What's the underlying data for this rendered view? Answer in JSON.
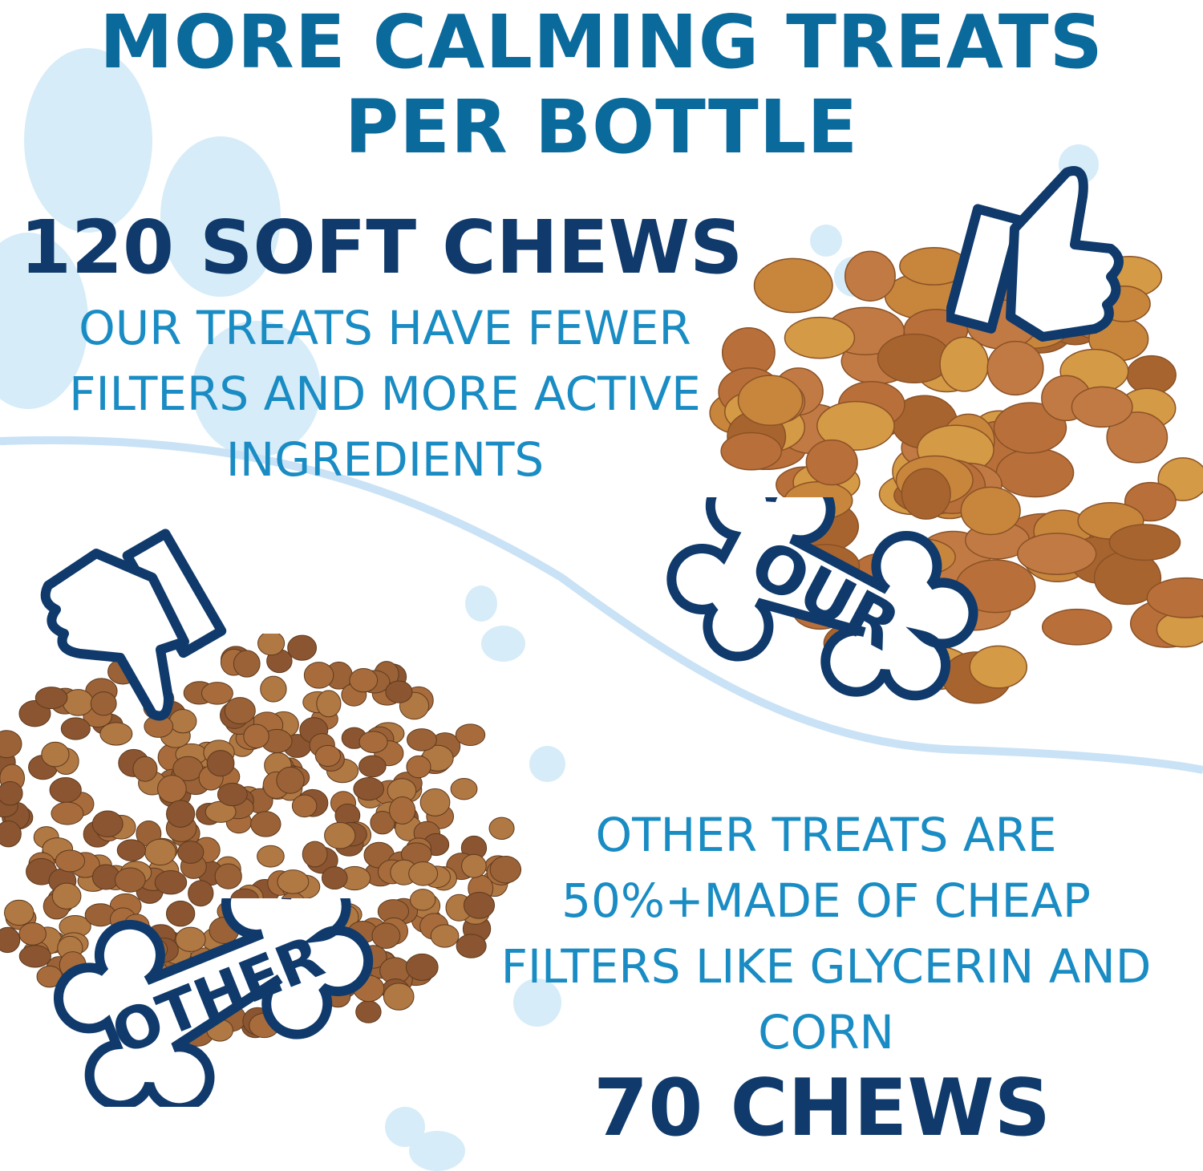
{
  "title": {
    "line1": "MORE CALMING TREATS",
    "line2": "PER BOTTLE"
  },
  "ours": {
    "count": "120 SOFT CHEWS",
    "description": [
      "OUR TREATS HAVE FEWER",
      "FILTERS AND MORE ACTIVE",
      "INGREDIENTS"
    ],
    "bone_label": "OUR",
    "icon": "thumbs-up-icon"
  },
  "other": {
    "description": [
      "OTHER TREATS ARE",
      "50%+MADE OF CHEAP",
      "FILTERS LIKE GLYCERIN AND",
      "CORN"
    ],
    "count": "70 CHEWS",
    "bone_label": "OTHER",
    "icon": "thumbs-down-icon"
  },
  "colors": {
    "title": "#0b6a9c",
    "navy": "#0f3a6b",
    "body_text": "#1a8cc4",
    "paw": "#d6ecf8",
    "treat_ours": "#c8863c",
    "treat_other": "#9a6236"
  }
}
